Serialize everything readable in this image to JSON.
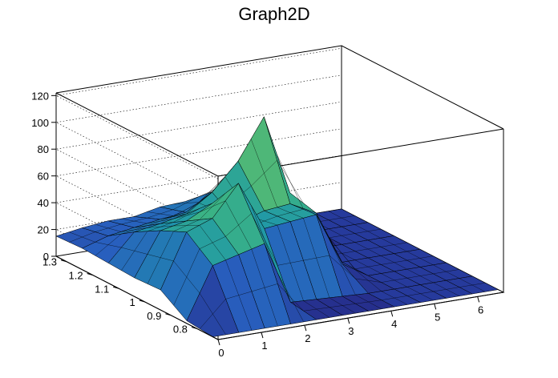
{
  "chart_data": {
    "type": "surface",
    "title": "Graph2D",
    "xlabel": "",
    "ylabel": "",
    "zlabel": "",
    "x_ticks": [
      "0",
      "1",
      "2",
      "3",
      "4",
      "5",
      "6"
    ],
    "y_ticks": [
      "0.8",
      "0.9",
      "1",
      "1.1",
      "1.2",
      "1.3"
    ],
    "z_ticks": [
      "0",
      "20",
      "40",
      "60",
      "80",
      "100",
      "120"
    ],
    "xlim": [
      0,
      6.6
    ],
    "ylim": [
      0.72,
      1.34
    ],
    "zlim": [
      0,
      122
    ],
    "grid": true,
    "colormap": "viridis-like (blue to yellow)",
    "colors": {
      "low": "#1e2f8f",
      "mid": "#21a09a",
      "high": "#f5e24a",
      "flat_floor": "#263a9c"
    },
    "surface_grid_x": [
      0,
      0.6,
      1.2,
      1.8,
      2.4,
      3.0,
      3.6,
      4.2,
      4.8,
      5.4,
      6.0,
      6.6
    ],
    "surface_grid_y": [
      0.74,
      0.84,
      0.94,
      1.04,
      1.14,
      1.24,
      1.34
    ],
    "z_values": [
      [
        0,
        0,
        0,
        0,
        0,
        0,
        0,
        0,
        0,
        0,
        0,
        0
      ],
      [
        2,
        40,
        45,
        50,
        3,
        2,
        1,
        0,
        0,
        0,
        0,
        0
      ],
      [
        15,
        55,
        62,
        85,
        48,
        50,
        52,
        12,
        0,
        0,
        0,
        0
      ],
      [
        14,
        46,
        50,
        60,
        42,
        48,
        50,
        40,
        0,
        0,
        0,
        0
      ],
      [
        15,
        35,
        38,
        42,
        55,
        75,
        105,
        45,
        0,
        0,
        0,
        0
      ],
      [
        16,
        22,
        25,
        28,
        30,
        42,
        52,
        38,
        5,
        0,
        0,
        0
      ],
      [
        15,
        18,
        20,
        20,
        24,
        25,
        26,
        28,
        3,
        0,
        0,
        0
      ]
    ]
  }
}
